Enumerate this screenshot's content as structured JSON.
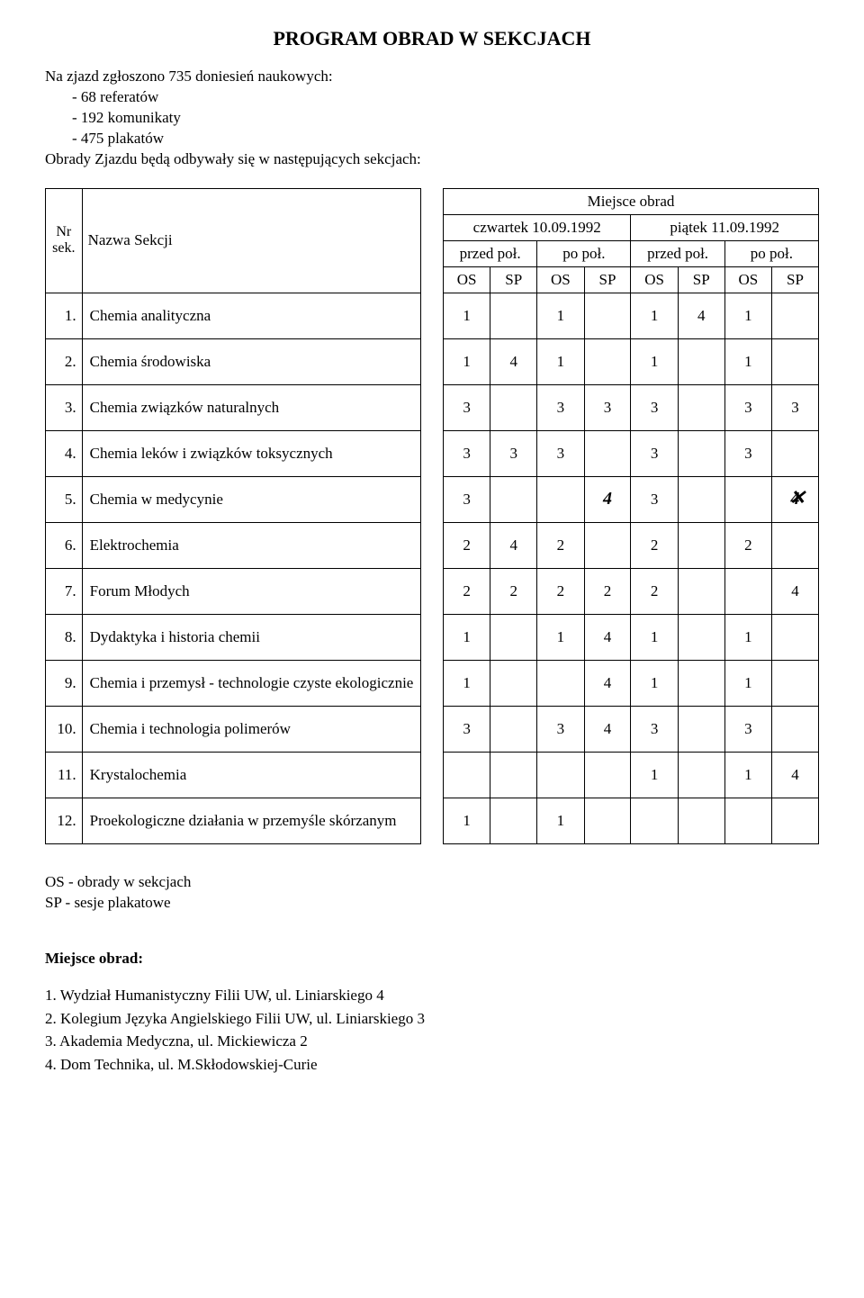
{
  "title": "PROGRAM OBRAD W SEKCJACH",
  "intro": {
    "l1": "Na zjazd zgłoszono 735 doniesień naukowych:",
    "l2": "- 68 referatów",
    "l3": "- 192 komunikaty",
    "l4": "- 475 plakatów",
    "l5": "Obrady Zjazdu będą odbywały się w następujących sekcjach:"
  },
  "header": {
    "nr": "Nr sek.",
    "nazwa": "Nazwa Sekcji",
    "miejsce": "Miejsce obrad",
    "day1": "czwartek 10.09.1992",
    "day2": "piątek 11.09.1992",
    "przed": "przed poł.",
    "po": "po poł.",
    "os": "OS",
    "sp": "SP"
  },
  "rows": [
    {
      "nr": "1.",
      "name": "Chemia analityczna",
      "v": [
        "1",
        "",
        "1",
        "",
        "1",
        "4",
        "1",
        ""
      ]
    },
    {
      "nr": "2.",
      "name": "Chemia środowiska",
      "v": [
        "1",
        "4",
        "1",
        "",
        "1",
        "",
        "1",
        ""
      ]
    },
    {
      "nr": "3.",
      "name": "Chemia związków naturalnych",
      "v": [
        "3",
        "",
        "3",
        "3",
        "3",
        "",
        "3",
        "3"
      ]
    },
    {
      "nr": "4.",
      "name": "Chemia leków i związków toksycznych",
      "v": [
        "3",
        "3",
        "3",
        "",
        "3",
        "",
        "3",
        ""
      ]
    },
    {
      "nr": "5.",
      "name": "Chemia w medycynie",
      "v": [
        "3",
        "",
        "",
        "4hw",
        "3",
        "",
        "",
        "4x"
      ]
    },
    {
      "nr": "6.",
      "name": "Elektrochemia",
      "v": [
        "2",
        "4",
        "2",
        "",
        "2",
        "",
        "2",
        ""
      ]
    },
    {
      "nr": "7.",
      "name": "Forum Młodych",
      "v": [
        "2",
        "2",
        "2",
        "2",
        "2",
        "",
        "",
        "4"
      ]
    },
    {
      "nr": "8.",
      "name": "Dydaktyka i historia chemii",
      "v": [
        "1",
        "",
        "1",
        "4",
        "1",
        "",
        "1",
        ""
      ]
    },
    {
      "nr": "9.",
      "name": "Chemia i przemysł - technologie czyste ekologicznie",
      "v": [
        "1",
        "",
        "",
        "4",
        "1",
        "",
        "1",
        ""
      ]
    },
    {
      "nr": "10.",
      "name": "Chemia i technologia polimerów",
      "v": [
        "3",
        "",
        "3",
        "4",
        "3",
        "",
        "3",
        ""
      ]
    },
    {
      "nr": "11.",
      "name": "Krystalochemia",
      "v": [
        "",
        "",
        "",
        "",
        "1",
        "",
        "1",
        "4"
      ]
    },
    {
      "nr": "12.",
      "name": "Proekologiczne działania w przemyśle skórzanym",
      "v": [
        "1",
        "",
        "1",
        "",
        "",
        "",
        "",
        ""
      ]
    }
  ],
  "legend": {
    "os": "OS - obrady w sekcjach",
    "sp": "SP - sesje plakatowe"
  },
  "mo_title": "Miejsce obrad:",
  "locations": {
    "l1": "1. Wydział Humanistyczny Filii UW, ul. Liniarskiego 4",
    "l2": "2. Kolegium Języka Angielskiego Filii UW, ul. Liniarskiego 3",
    "l3": "3. Akademia Medyczna, ul. Mickiewicza 2",
    "l4": "4. Dom Technika, ul. M.Skłodowskiej-Curie"
  },
  "colors": {
    "text": "#000000",
    "bg": "#ffffff",
    "border": "#000000"
  }
}
